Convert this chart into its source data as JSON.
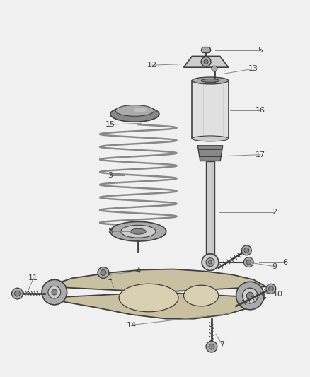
{
  "background_color": "#f0f0f0",
  "line_color": "#404040",
  "label_color": "#404040",
  "fig_width": 4.38,
  "fig_height": 5.33,
  "dpi": 100
}
